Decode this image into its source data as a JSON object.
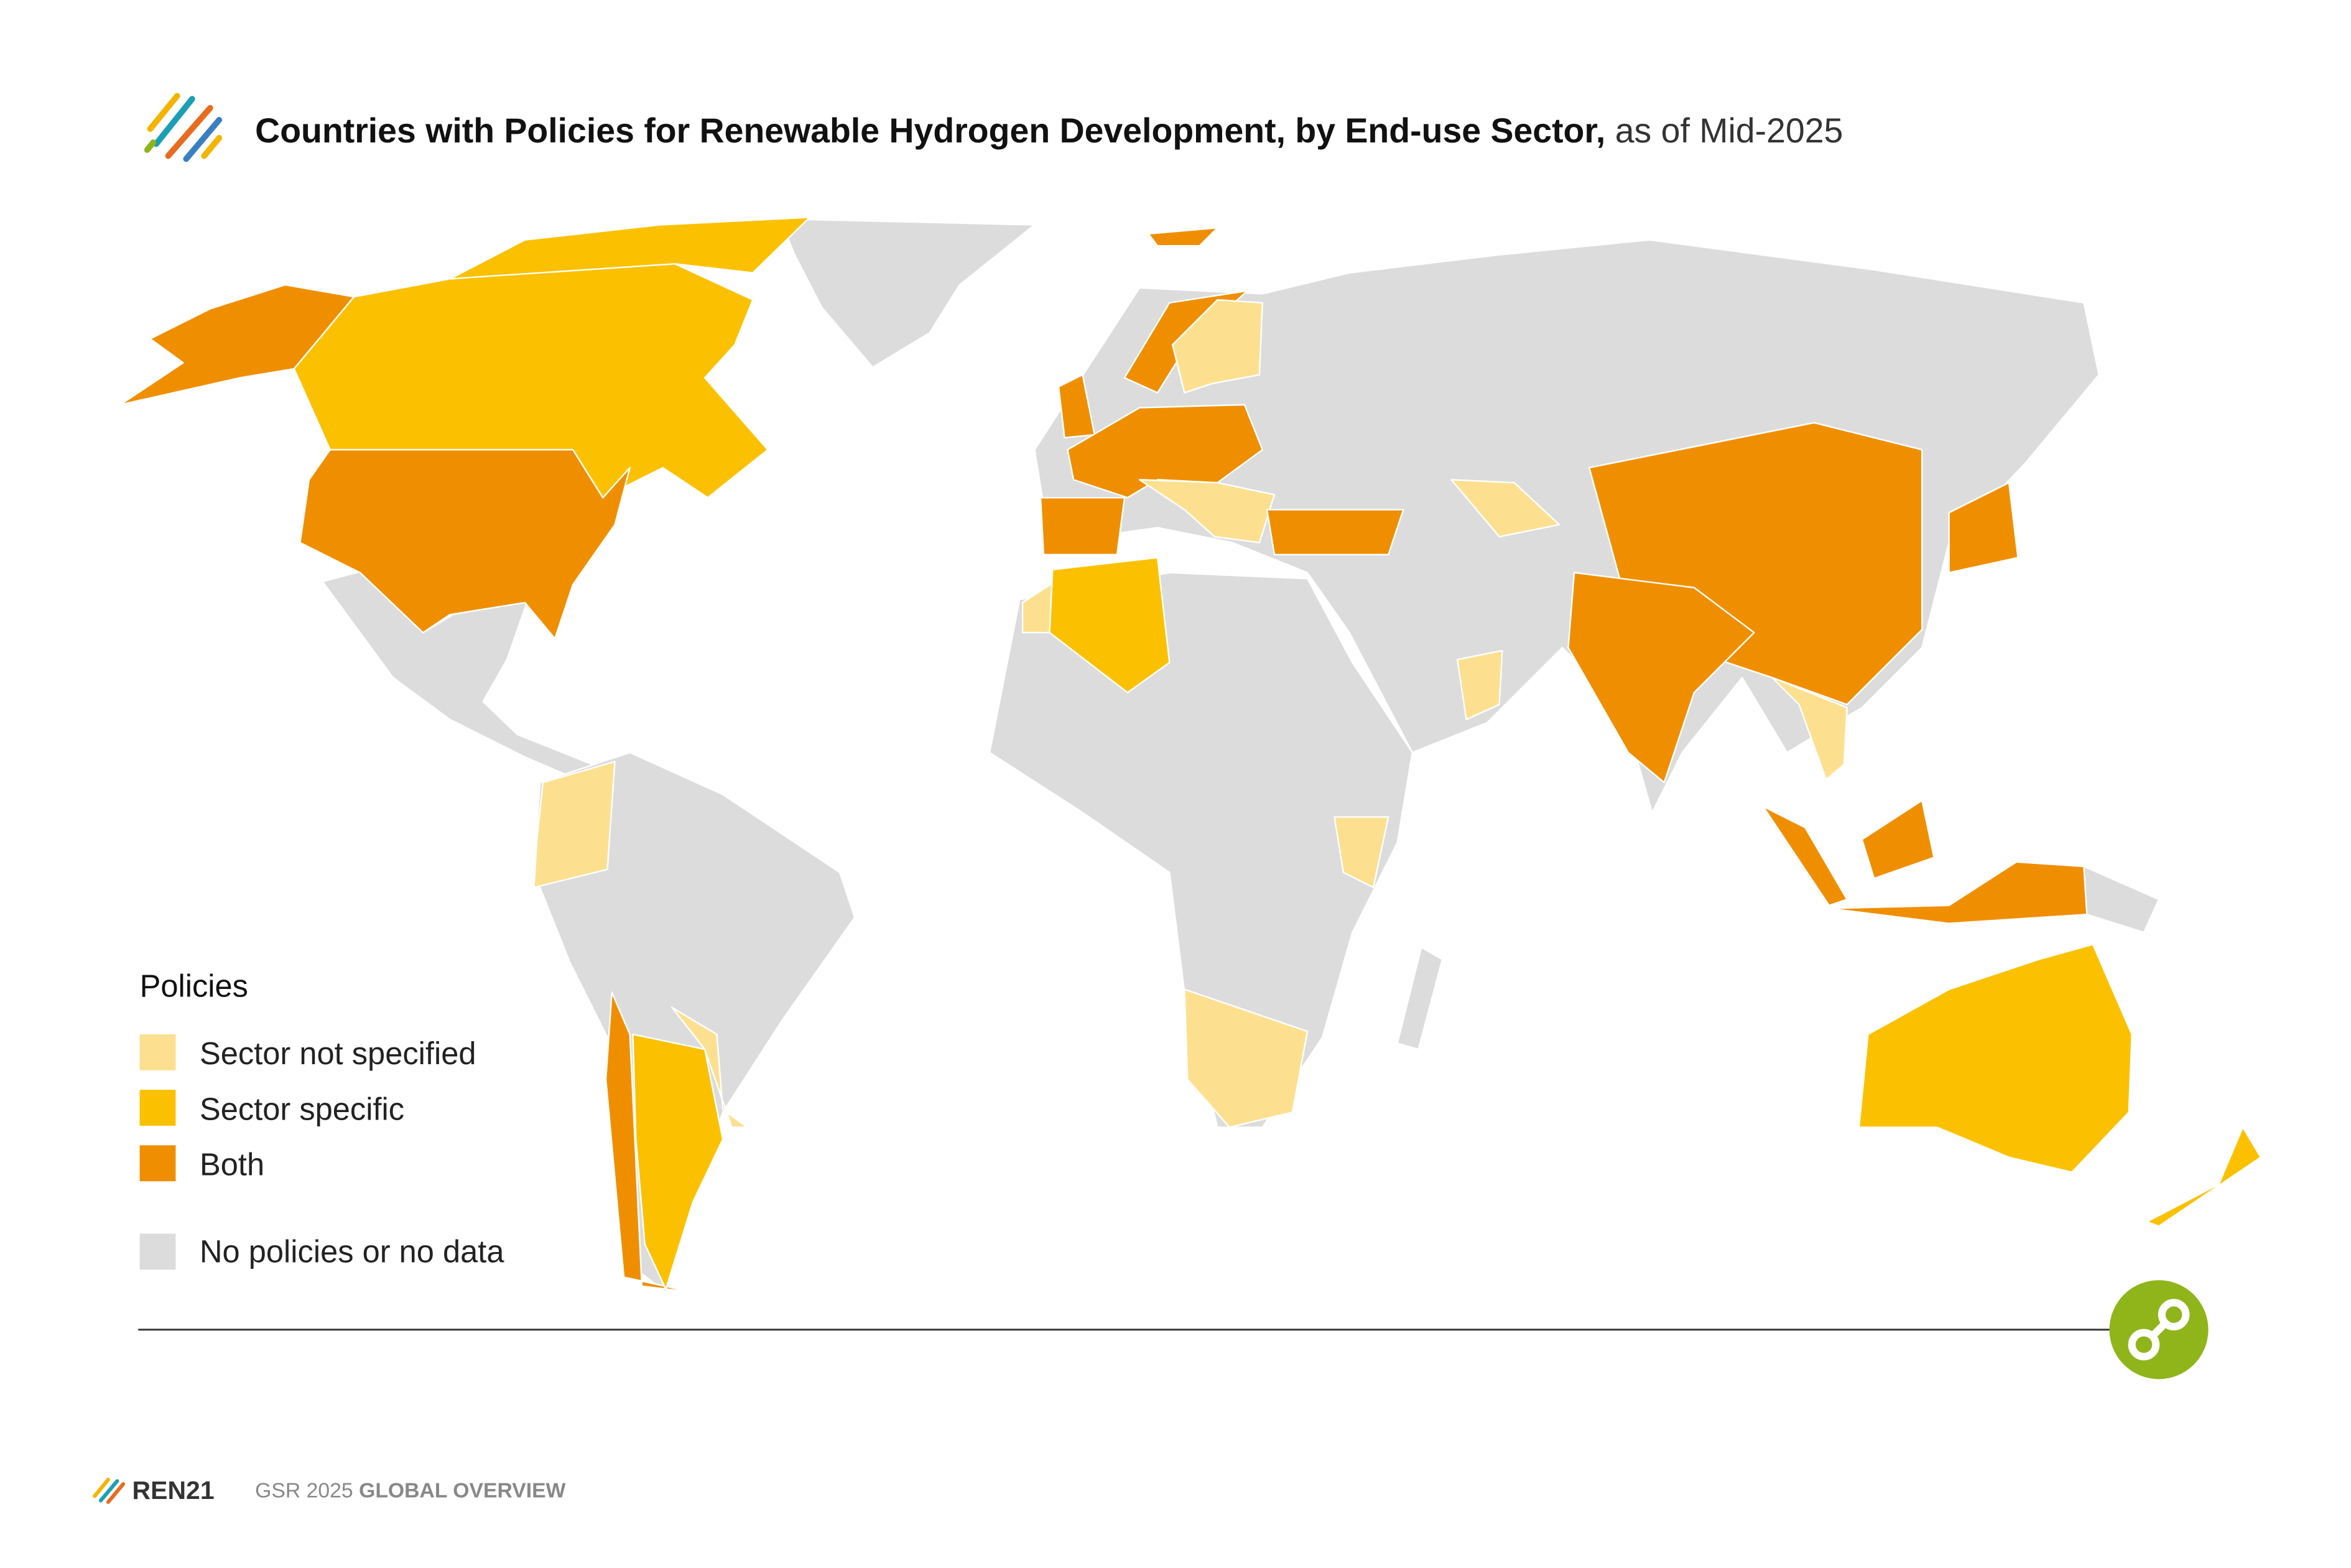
{
  "title": "Countries with Policies for Renewable Hydrogen Development, by End-use Sector,",
  "title_suffix": "as of Mid-2025",
  "legend": {
    "title": "Policies",
    "items": [
      {
        "label": "Sector not specified",
        "color": "#fde08f"
      },
      {
        "label": "Sector specific",
        "color": "#fbc100"
      },
      {
        "label": "Both",
        "color": "#ef8f00"
      },
      {
        "label": "No policies or no data",
        "color": "#dcdcdc"
      }
    ]
  },
  "footer": {
    "brand": "REN21",
    "report": "GSR 2025",
    "section": "GLOBAL OVERVIEW"
  }
}
